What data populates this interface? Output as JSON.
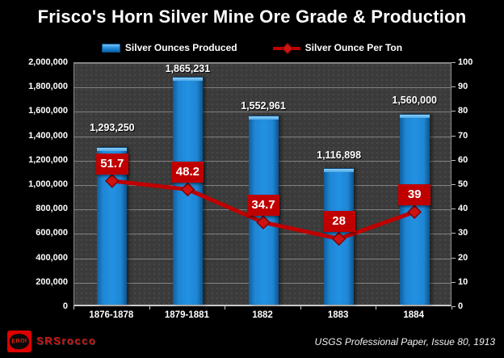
{
  "title": "Frisco's Horn Silver Mine Ore Grade & Production",
  "legend": [
    {
      "label": "Silver Ounces Produced",
      "swatch": "bar-swatch-icon",
      "color": "#1e86d4"
    },
    {
      "label": "Silver Ounce Per Ton",
      "swatch": "line-diamond-swatch-icon",
      "color": "#c00000"
    }
  ],
  "chart_data": {
    "type": "bar",
    "subtype": "combo-bar-line",
    "title": "Frisco's Horn Silver Mine Ore Grade & Production",
    "categories": [
      "1876-1878",
      "1879-1881",
      "1882",
      "1883",
      "1884"
    ],
    "series": [
      {
        "name": "Silver Ounces Produced",
        "type": "bar",
        "axis": "left",
        "values": [
          1293250,
          1865231,
          1552961,
          1116898,
          1560000
        ],
        "labels": [
          "1,293,250",
          "1,865,231",
          "1,552,961",
          "1,116,898",
          "1,560,000"
        ],
        "color": "#1e86d4"
      },
      {
        "name": "Silver Ounce Per Ton",
        "type": "line",
        "axis": "right",
        "values": [
          51.7,
          48.2,
          34.7,
          28,
          39
        ],
        "labels": [
          "51.7",
          "48.2",
          "34.7",
          "28",
          "39"
        ],
        "color": "#c00000"
      }
    ],
    "left_axis": {
      "min": 0,
      "max": 2000000,
      "step": 200000,
      "tick_labels": [
        "2,000,000",
        "1,800,000",
        "1,600,000",
        "1,400,000",
        "1,200,000",
        "1,000,000",
        "800,000",
        "600,000",
        "400,000",
        "200,000",
        "0"
      ]
    },
    "right_axis": {
      "min": 0,
      "max": 100,
      "step": 10,
      "tick_labels": [
        "100",
        "90",
        "80",
        "70",
        "60",
        "50",
        "40",
        "30",
        "20",
        "10",
        "0"
      ]
    },
    "grid": true,
    "legend_position": "top",
    "xlabel": "",
    "ylabel_left": "",
    "ylabel_right": ""
  },
  "footer": {
    "logo_text": "EROI",
    "brand": "SRSrocco",
    "source": "USGS Professional Paper, Issue 80, 1913"
  },
  "colors": {
    "background": "#000000",
    "plot_background": "#3b3b3b",
    "gridline": "#999999",
    "bar": "#1e86d4",
    "bar_cap": "#5db3ec",
    "line": "#c00000",
    "point_label_box": "#c00000",
    "text": "#ffffff",
    "brand_red": "#cc1111"
  }
}
